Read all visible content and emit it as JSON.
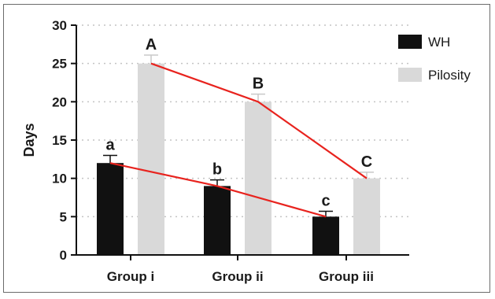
{
  "chart_data": {
    "type": "bar",
    "title": "",
    "xlabel": "",
    "ylabel": "Days",
    "ylim": [
      0,
      30
    ],
    "yticks": [
      0,
      5,
      10,
      15,
      20,
      25,
      30
    ],
    "grid": true,
    "legend_position": "top-right",
    "categories": [
      "Group i",
      "Group ii",
      "Group iii"
    ],
    "series": [
      {
        "name": "WH",
        "color": "#111111",
        "values": [
          12,
          9,
          5
        ],
        "errors": [
          1.0,
          0.8,
          0.7
        ],
        "labels": [
          "a",
          "b",
          "c"
        ]
      },
      {
        "name": "Pilosity",
        "color": "#d9d9d9",
        "values": [
          25,
          20,
          10
        ],
        "errors": [
          1.1,
          1.0,
          0.8
        ],
        "labels": [
          "A",
          "B",
          "C"
        ]
      }
    ],
    "trend_line_color": "#e8231e"
  }
}
